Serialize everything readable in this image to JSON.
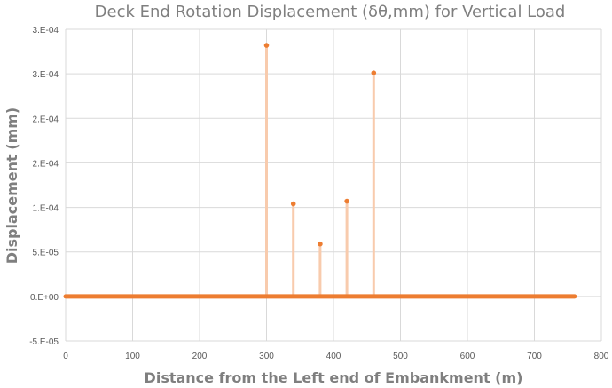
{
  "chart_data": {
    "type": "scatter",
    "title": "Deck End Rotation Displacement (δθ,mm) for Vertical Load",
    "xlabel": "Distance from the Left end of Embankment (m)",
    "ylabel": "Displacement (mm)",
    "xlim": [
      0,
      800
    ],
    "ylim": [
      -5e-05,
      0.0003
    ],
    "x_ticks": [
      0,
      100,
      200,
      300,
      400,
      500,
      600,
      700,
      800
    ],
    "x_tick_labels": [
      "0",
      "100",
      "200",
      "300",
      "400",
      "500",
      "600",
      "700",
      "800"
    ],
    "y_ticks": [
      0.0003,
      0.00025,
      0.0002,
      0.00015,
      0.0001,
      5e-05,
      0,
      -5e-05
    ],
    "y_tick_labels": [
      "3.E-04",
      "3.E-04",
      "2.E-04",
      "2.E-04",
      "1.E-04",
      "5.E-05",
      "0.E+00",
      "-5.E-05"
    ],
    "grid": true,
    "legend": "none",
    "baseline": {
      "x_start": 0,
      "x_end": 760,
      "y": 0
    },
    "peaks": [
      {
        "x": 300,
        "y": 0.000282
      },
      {
        "x": 340,
        "y": 0.000104
      },
      {
        "x": 380,
        "y": 5.9e-05
      },
      {
        "x": 420,
        "y": 0.000107
      },
      {
        "x": 460,
        "y": 0.000251
      }
    ],
    "colors": {
      "marker": "#ED7D31",
      "stem": "#F8CBAD",
      "grid": "#D9D9D9",
      "text": "#595959"
    }
  }
}
